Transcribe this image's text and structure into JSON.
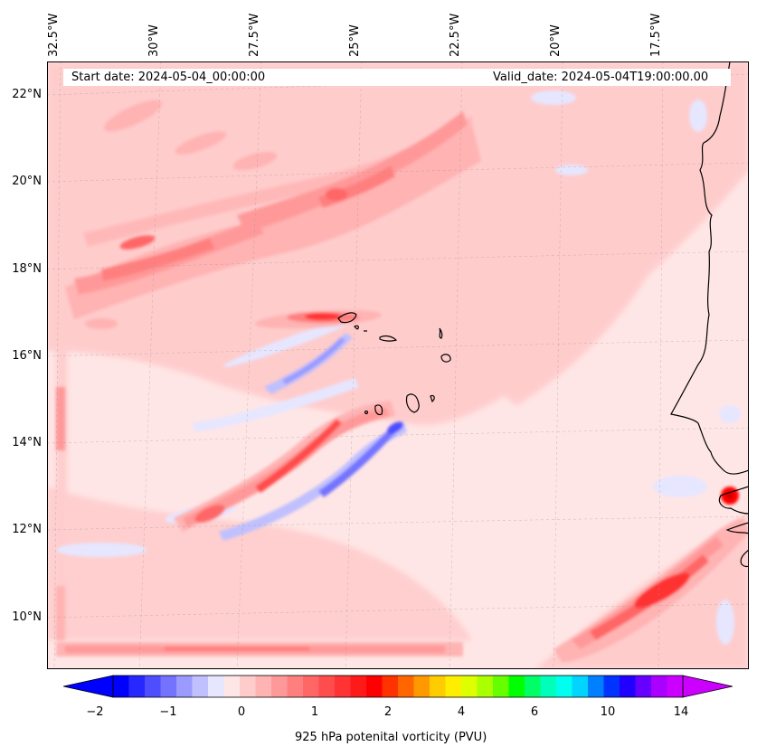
{
  "map": {
    "start_date_label": "Start date: 2024-05-04_00:00:00",
    "valid_date_label": "Valid_date: 2024-05-04T19:00:00.00",
    "longitude_labels": [
      "32.5°W",
      "30°W",
      "27.5°W",
      "25°W",
      "22.5°W",
      "20°W",
      "17.5°W"
    ],
    "latitude_labels": [
      "22°N",
      "20°N",
      "18°N",
      "16°N",
      "14°N",
      "12°N",
      "10°N"
    ],
    "gridlines": true,
    "projection": "lambert-conformal"
  },
  "colorbar": {
    "label": "925 hPa potenital vorticity (PVU)",
    "tick_labels": [
      "−2",
      "−1",
      "0",
      "1",
      "2",
      "4",
      "6",
      "10",
      "14"
    ],
    "extend": "both",
    "colors": [
      "#0000ff",
      "#2727ff",
      "#4e4eff",
      "#7373ff",
      "#9a9aff",
      "#c0c0ff",
      "#e6e6ff",
      "#ffe6e6",
      "#ffcccc",
      "#ffb3b3",
      "#ff9999",
      "#ff7f7f",
      "#ff6666",
      "#ff4c4c",
      "#ff3333",
      "#ff1a1a",
      "#ff0000",
      "#ff3300",
      "#ff6600",
      "#ff9900",
      "#ffcc00",
      "#ffee00",
      "#ddff00",
      "#aaff00",
      "#66ff00",
      "#00ff00",
      "#00ff66",
      "#00ffbb",
      "#00ffee",
      "#00d4ff",
      "#0080ff",
      "#0033ff",
      "#2200ff",
      "#6600ff",
      "#aa00ff",
      "#cc00ff"
    ]
  }
}
